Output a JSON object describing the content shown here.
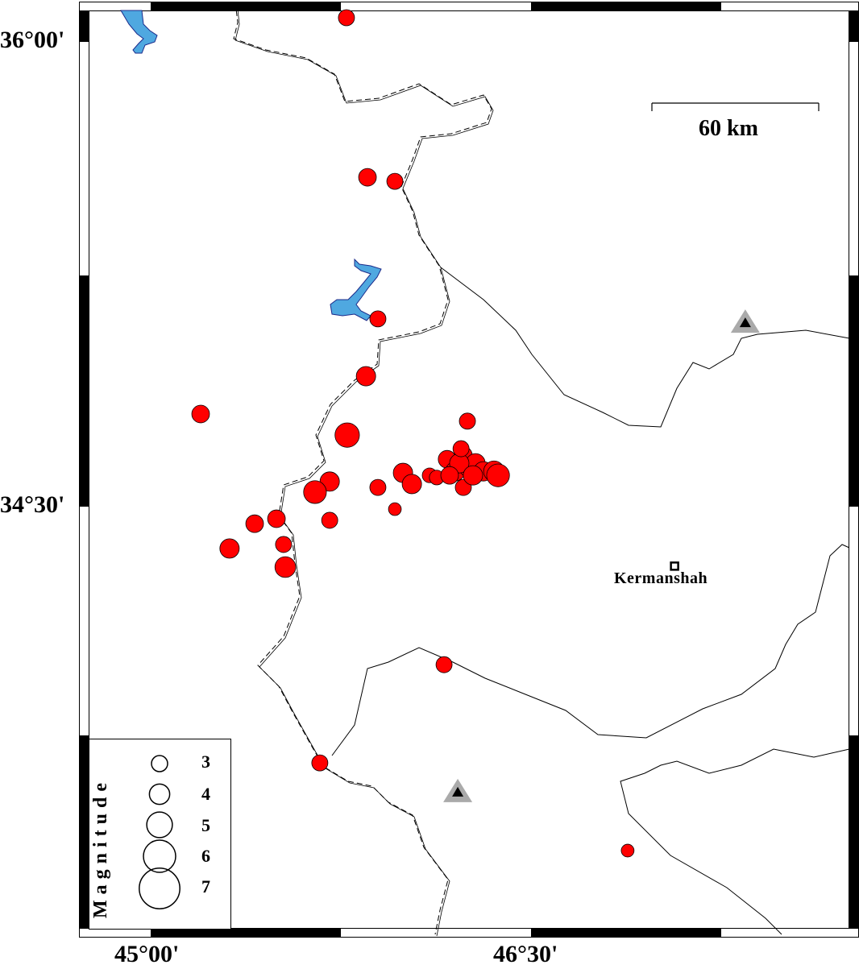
{
  "map": {
    "lon_range": [
      44.72,
      47.72
    ],
    "lat_range": [
      33.37,
      36.1
    ],
    "lat_ticks": [
      {
        "value": 36.0,
        "label": "36°00'"
      },
      {
        "value": 34.5,
        "label": "34°30'"
      }
    ],
    "lon_ticks": [
      {
        "value": 45.0,
        "label": "45°00'"
      },
      {
        "value": 46.5,
        "label": "46°30'"
      }
    ],
    "scale_bar": {
      "label": "60 km"
    },
    "colors": {
      "event": "#ff0000",
      "water": "#4fa8e0",
      "station": "#aaaaaa",
      "border": "#000000"
    }
  },
  "city": {
    "name": "Kermanshah",
    "lon": 47.066,
    "lat": 34.308,
    "icon": "square-icon"
  },
  "stations": [
    {
      "lon": 47.345,
      "lat": 35.095,
      "icon": "triangle-icon"
    },
    {
      "lon": 46.211,
      "lat": 33.58,
      "icon": "triangle-icon"
    }
  ],
  "legend": {
    "title": "Magnitude",
    "entries": [
      {
        "label": "3",
        "mag": 3
      },
      {
        "label": "4",
        "mag": 4
      },
      {
        "label": "5",
        "mag": 5
      },
      {
        "label": "6",
        "mag": 6
      },
      {
        "label": "7",
        "mag": 7
      }
    ]
  },
  "events": [
    {
      "lon": 45.772,
      "lat": 36.078,
      "mag": 3.0
    },
    {
      "lon": 45.855,
      "lat": 35.563,
      "mag": 3.4
    },
    {
      "lon": 45.963,
      "lat": 35.55,
      "mag": 3.0
    },
    {
      "lon": 45.896,
      "lat": 35.106,
      "mag": 3.0
    },
    {
      "lon": 45.849,
      "lat": 34.921,
      "mag": 3.8
    },
    {
      "lon": 45.197,
      "lat": 34.799,
      "mag": 3.4
    },
    {
      "lon": 45.775,
      "lat": 34.731,
      "mag": 4.8
    },
    {
      "lon": 46.249,
      "lat": 34.776,
      "mag": 3.0
    },
    {
      "lon": 45.706,
      "lat": 34.581,
      "mag": 3.8
    },
    {
      "lon": 45.648,
      "lat": 34.547,
      "mag": 4.5
    },
    {
      "lon": 45.896,
      "lat": 34.562,
      "mag": 3.0
    },
    {
      "lon": 45.995,
      "lat": 34.609,
      "mag": 3.8
    },
    {
      "lon": 46.03,
      "lat": 34.573,
      "mag": 3.8
    },
    {
      "lon": 45.963,
      "lat": 34.492,
      "mag": 2.0
    },
    {
      "lon": 45.496,
      "lat": 34.461,
      "mag": 3.4
    },
    {
      "lon": 45.41,
      "lat": 34.445,
      "mag": 3.4
    },
    {
      "lon": 45.706,
      "lat": 34.456,
      "mag": 3.0
    },
    {
      "lon": 45.311,
      "lat": 34.365,
      "mag": 3.8
    },
    {
      "lon": 45.524,
      "lat": 34.378,
      "mag": 3.0
    },
    {
      "lon": 45.531,
      "lat": 34.305,
      "mag": 4.1
    },
    {
      "lon": 46.157,
      "lat": 33.99,
      "mag": 3.0
    },
    {
      "lon": 45.667,
      "lat": 33.673,
      "mag": 3.0
    },
    {
      "lon": 46.881,
      "lat": 33.39,
      "mag": 2.0
    },
    {
      "lon": 46.1,
      "lat": 34.601,
      "mag": 2.6
    },
    {
      "lon": 46.128,
      "lat": 34.594,
      "mag": 2.6
    },
    {
      "lon": 46.169,
      "lat": 34.653,
      "mag": 3.4
    },
    {
      "lon": 46.201,
      "lat": 34.614,
      "mag": 3.8
    },
    {
      "lon": 46.233,
      "lat": 34.666,
      "mag": 3.4
    },
    {
      "lon": 46.255,
      "lat": 34.627,
      "mag": 3.8
    },
    {
      "lon": 46.281,
      "lat": 34.64,
      "mag": 3.8
    },
    {
      "lon": 46.312,
      "lat": 34.614,
      "mag": 3.8
    },
    {
      "lon": 46.354,
      "lat": 34.614,
      "mag": 4.1
    },
    {
      "lon": 46.37,
      "lat": 34.601,
      "mag": 4.5
    },
    {
      "lon": 46.233,
      "lat": 34.562,
      "mag": 3.0
    },
    {
      "lon": 46.217,
      "lat": 34.64,
      "mag": 3.8
    },
    {
      "lon": 46.179,
      "lat": 34.601,
      "mag": 3.4
    },
    {
      "lon": 46.271,
      "lat": 34.601,
      "mag": 3.8
    },
    {
      "lon": 46.224,
      "lat": 34.687,
      "mag": 3.0
    }
  ]
}
